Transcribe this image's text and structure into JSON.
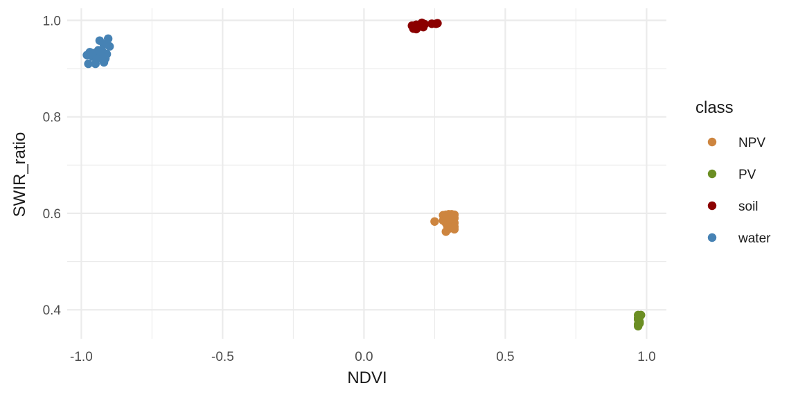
{
  "chart_data": {
    "type": "scatter",
    "xlabel": "NDVI",
    "ylabel": "SWIR_ratio",
    "xlim": [
      -1.05,
      1.07
    ],
    "ylim": [
      0.34,
      1.025
    ],
    "x_ticks": [
      -1.0,
      -0.5,
      0.0,
      0.5,
      1.0
    ],
    "x_tick_labels": [
      "-1.0",
      "-0.5",
      "0.0",
      "0.5",
      "1.0"
    ],
    "y_ticks": [
      0.4,
      0.6,
      0.8,
      1.0
    ],
    "y_tick_labels": [
      "0.4",
      "0.6",
      "0.8",
      "1.0"
    ],
    "grid": true,
    "legend_position": "right",
    "legend": {
      "title": "class",
      "entries": [
        "NPV",
        "PV",
        "soil",
        "water"
      ]
    },
    "series": [
      {
        "name": "NPV",
        "color": "#cd853f",
        "points": [
          [
            0.25,
            0.583
          ],
          [
            0.28,
            0.585
          ],
          [
            0.29,
            0.59
          ],
          [
            0.29,
            0.58
          ],
          [
            0.29,
            0.562
          ],
          [
            0.3,
            0.598
          ],
          [
            0.3,
            0.592
          ],
          [
            0.3,
            0.585
          ],
          [
            0.3,
            0.575
          ],
          [
            0.3,
            0.568
          ],
          [
            0.31,
            0.598
          ],
          [
            0.31,
            0.59
          ],
          [
            0.31,
            0.582
          ],
          [
            0.31,
            0.578
          ],
          [
            0.31,
            0.57
          ],
          [
            0.32,
            0.597
          ],
          [
            0.32,
            0.59
          ],
          [
            0.32,
            0.58
          ],
          [
            0.32,
            0.572
          ],
          [
            0.32,
            0.567
          ],
          [
            0.28,
            0.596
          ],
          [
            0.29,
            0.597
          ],
          [
            0.305,
            0.588
          ],
          [
            0.315,
            0.594
          ],
          [
            0.295,
            0.574
          ]
        ]
      },
      {
        "name": "PV",
        "color": "#6b8e23",
        "points": [
          [
            0.97,
            0.389
          ],
          [
            0.975,
            0.385
          ],
          [
            0.97,
            0.38
          ],
          [
            0.975,
            0.375
          ],
          [
            0.97,
            0.37
          ],
          [
            0.97,
            0.366
          ],
          [
            0.975,
            0.388
          ],
          [
            0.98,
            0.389
          ],
          [
            0.97,
            0.383
          ],
          [
            0.975,
            0.372
          ]
        ]
      },
      {
        "name": "soil",
        "color": "#8b0000",
        "points": [
          [
            0.17,
            0.989
          ],
          [
            0.175,
            0.983
          ],
          [
            0.18,
            0.987
          ],
          [
            0.185,
            0.991
          ],
          [
            0.19,
            0.985
          ],
          [
            0.195,
            0.99
          ],
          [
            0.2,
            0.988
          ],
          [
            0.205,
            0.995
          ],
          [
            0.21,
            0.986
          ],
          [
            0.215,
            0.992
          ],
          [
            0.24,
            0.993
          ],
          [
            0.26,
            0.994
          ],
          [
            0.255,
            0.993
          ],
          [
            0.185,
            0.982
          ]
        ]
      },
      {
        "name": "water",
        "color": "#4682b4",
        "points": [
          [
            -0.98,
            0.928
          ],
          [
            -0.97,
            0.934
          ],
          [
            -0.975,
            0.91
          ],
          [
            -0.96,
            0.925
          ],
          [
            -0.955,
            0.932
          ],
          [
            -0.95,
            0.91
          ],
          [
            -0.945,
            0.93
          ],
          [
            -0.94,
            0.938
          ],
          [
            -0.935,
            0.958
          ],
          [
            -0.93,
            0.925
          ],
          [
            -0.925,
            0.935
          ],
          [
            -0.92,
            0.95
          ],
          [
            -0.915,
            0.921
          ],
          [
            -0.91,
            0.93
          ],
          [
            -0.905,
            0.962
          ],
          [
            -0.9,
            0.946
          ],
          [
            -0.92,
            0.913
          ],
          [
            -0.93,
            0.928
          ],
          [
            -0.945,
            0.92
          ],
          [
            -0.965,
            0.93
          ]
        ]
      }
    ]
  }
}
